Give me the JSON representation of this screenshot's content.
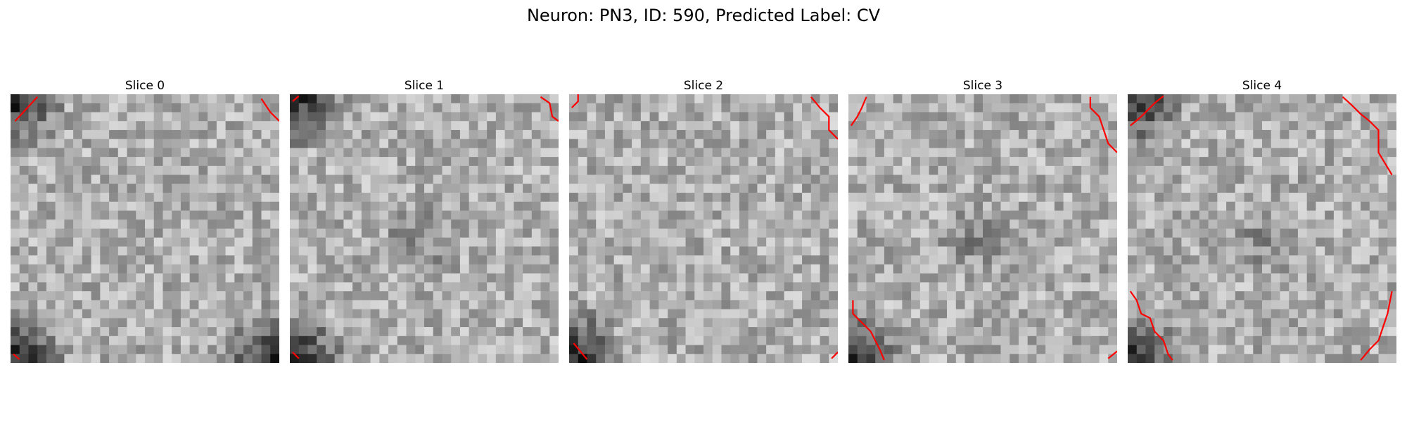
{
  "figure": {
    "title": "Neuron: PN3, ID: 590, Predicted Label: CV"
  },
  "colors": {
    "contour": "#ff0000",
    "background": "#ffffff"
  },
  "slices": [
    {
      "label": "Slice 0",
      "dark_corners": [
        "top-left",
        "bottom-left",
        "bottom-right"
      ],
      "dark_center": false
    },
    {
      "label": "Slice 1",
      "dark_corners": [
        "top-left",
        "bottom-left"
      ],
      "dark_center": true
    },
    {
      "label": "Slice 2",
      "dark_corners": [
        "bottom-left"
      ],
      "dark_center": false
    },
    {
      "label": "Slice 3",
      "dark_corners": [
        "bottom-left"
      ],
      "dark_center": true
    },
    {
      "label": "Slice 4",
      "dark_corners": [
        "top-left",
        "bottom-left"
      ],
      "dark_center": true
    }
  ]
}
